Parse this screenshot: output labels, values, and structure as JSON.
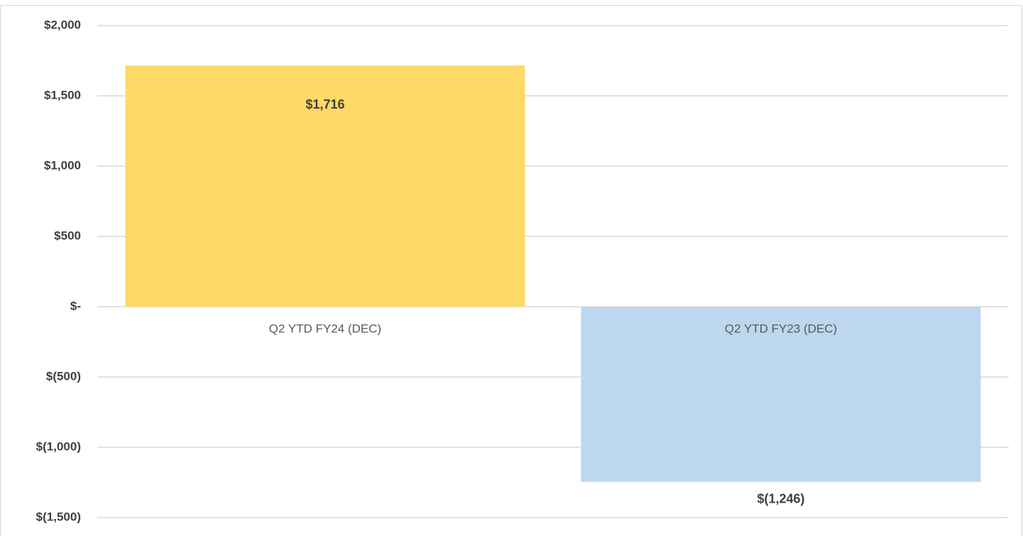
{
  "chart_data": {
    "type": "bar",
    "categories": [
      "Q2 YTD FY24 (DEC)",
      "Q2 YTD FY23 (DEC)"
    ],
    "values": [
      1716,
      -1246
    ],
    "value_labels": [
      "$1,716",
      "$(1,246)"
    ],
    "colors": [
      "#ffd966",
      "#bdd7ee"
    ],
    "ylim": [
      -1500,
      2000
    ],
    "yticks": [
      {
        "value": 2000,
        "label": "$2,000"
      },
      {
        "value": 1500,
        "label": "$1,500"
      },
      {
        "value": 1000,
        "label": "$1,000"
      },
      {
        "value": 500,
        "label": "$500"
      },
      {
        "value": 0,
        "label": "$-"
      },
      {
        "value": -500,
        "label": "$(500)"
      },
      {
        "value": -1000,
        "label": "$(1,000)"
      },
      {
        "value": -1500,
        "label": "$(1,500)"
      }
    ],
    "grid": true
  }
}
